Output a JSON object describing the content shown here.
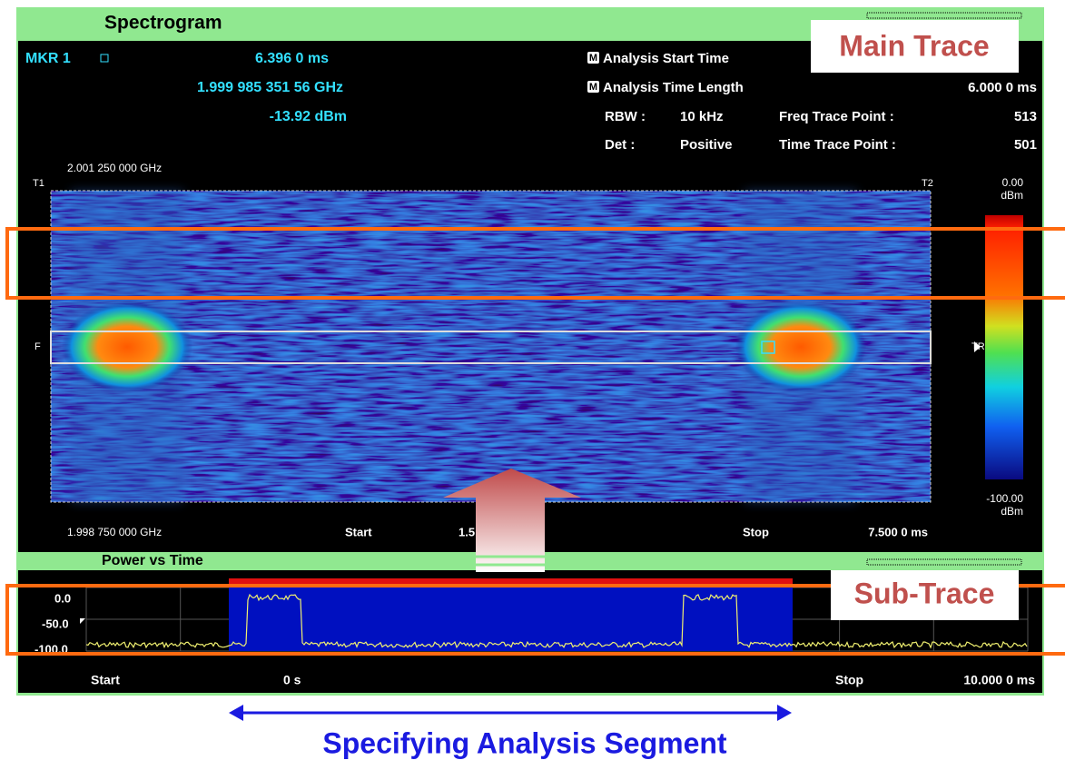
{
  "spectrogram": {
    "title": "Spectrogram",
    "marker": {
      "label": "MKR 1",
      "time": "6.396 0 ms",
      "freq": "1.999 985 351 56 GHz",
      "level": "-13.92 dBm"
    },
    "settings": {
      "m_icon": "M",
      "analysis_start_time": "Analysis Start Time",
      "analysis_time_length": "Analysis Time Length",
      "analysis_time_length_value": "6.000 0 ms",
      "rbw_label": "RBW :",
      "rbw": "10 kHz",
      "freq_trace_point_label": "Freq Trace Point :",
      "freq_trace_point": "513",
      "det_label": "Det :",
      "det": "Positive",
      "time_trace_point_label": "Time Trace Point :",
      "time_trace_point": "501"
    },
    "freq_top": "2.001 250 000 GHz",
    "freq_bottom": "1.998 750 000 GHz",
    "t1": "T1",
    "t2": "T2",
    "f": "F",
    "scale_top": "0.00",
    "scale_unit": "dBm",
    "trig": "TRIG",
    "scale_bottom": "-100.00",
    "start": "Start",
    "start_value": "1.5",
    "stop": "Stop",
    "stop_value": "7.500 0 ms"
  },
  "power_vs_time": {
    "title": "Power vs Time",
    "y_labels": [
      "0.0",
      "-50.0",
      "-100.0"
    ],
    "start": "Start",
    "start_value": "0 s",
    "stop": "Stop",
    "stop_value": "10.000 0 ms"
  },
  "annotations": {
    "main_trace": "Main Trace",
    "sub_trace": "Sub-Trace",
    "segment": "Specifying Analysis Segment"
  }
}
